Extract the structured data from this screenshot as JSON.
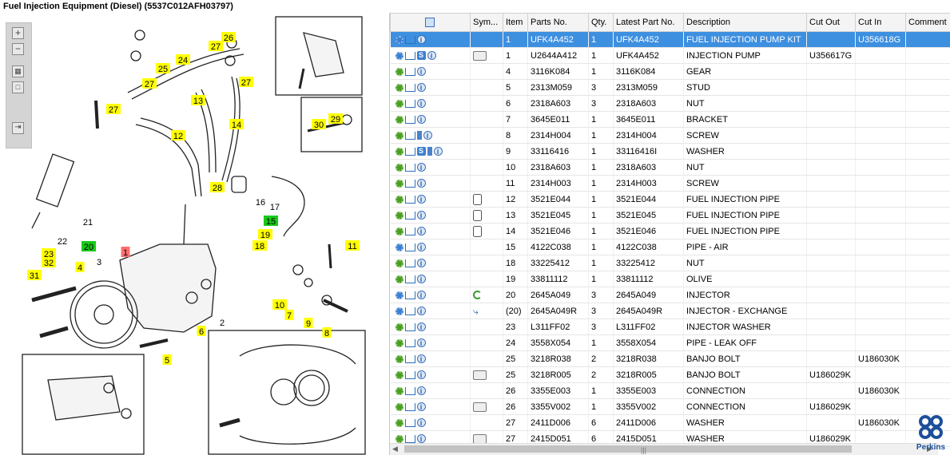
{
  "title": "Fuel Injection Equipment (Diesel) (5537C012AFH03797)",
  "toolbar": {
    "zoom_in": "+",
    "zoom_out": "−"
  },
  "callouts": [
    {
      "label": "26",
      "color": "yellow"
    },
    {
      "label": "27",
      "color": "yellow"
    },
    {
      "label": "25",
      "color": "yellow"
    },
    {
      "label": "24",
      "color": "yellow"
    },
    {
      "label": "27",
      "color": "yellow"
    },
    {
      "label": "27",
      "color": "yellow"
    },
    {
      "label": "13",
      "color": "yellow"
    },
    {
      "label": "27",
      "color": "yellow"
    },
    {
      "label": "14",
      "color": "yellow"
    },
    {
      "label": "12",
      "color": "yellow"
    },
    {
      "label": "30",
      "color": "yellow"
    },
    {
      "label": "29",
      "color": "yellow"
    },
    {
      "label": "28",
      "color": "yellow"
    },
    {
      "label": "16",
      "color": "plain"
    },
    {
      "label": "17",
      "color": "plain"
    },
    {
      "label": "15",
      "color": "green"
    },
    {
      "label": "21",
      "color": "plain"
    },
    {
      "label": "22",
      "color": "plain"
    },
    {
      "label": "19",
      "color": "yellow"
    },
    {
      "label": "18",
      "color": "yellow"
    },
    {
      "label": "11",
      "color": "yellow"
    },
    {
      "label": "20",
      "color": "green"
    },
    {
      "label": "23",
      "color": "yellow"
    },
    {
      "label": "32",
      "color": "yellow"
    },
    {
      "label": "1",
      "color": "red"
    },
    {
      "label": "3",
      "color": "plain"
    },
    {
      "label": "4",
      "color": "yellow"
    },
    {
      "label": "31",
      "color": "yellow"
    },
    {
      "label": "10",
      "color": "yellow"
    },
    {
      "label": "7",
      "color": "yellow"
    },
    {
      "label": "2",
      "color": "plain"
    },
    {
      "label": "6",
      "color": "yellow"
    },
    {
      "label": "9",
      "color": "yellow"
    },
    {
      "label": "8",
      "color": "yellow"
    },
    {
      "label": "5",
      "color": "yellow"
    }
  ],
  "table": {
    "headers": [
      "",
      "Sym...",
      "Item",
      "Parts No.",
      "Qty.",
      "Latest Part No.",
      "Description",
      "Cut Out",
      "Cut In",
      "Comment"
    ],
    "rows": [
      {
        "icons": [
          "config-icon",
          "cart-icon",
          "info-icon"
        ],
        "sym": "",
        "item": "1",
        "part": "UFK4A452",
        "qty": "1",
        "latest": "UFK4A452",
        "desc": "FUEL INJECTION PUMP KIT",
        "cut_out": "",
        "cut_in": "U356618G",
        "comment": "",
        "selected": true
      },
      {
        "icons": [
          "config-icon",
          "cart-icon",
          "s-icon",
          "info-icon"
        ],
        "sym": "binoculars-icon",
        "item": "1",
        "part": "U2644A412",
        "qty": "1",
        "latest": "UFK4A452",
        "desc": "INJECTION PUMP",
        "cut_out": "U356617G",
        "cut_in": "",
        "comment": ""
      },
      {
        "icons": [
          "gear-icon",
          "cart-icon",
          "info-icon"
        ],
        "sym": "",
        "item": "4",
        "part": "3116K084",
        "qty": "1",
        "latest": "3116K084",
        "desc": "GEAR",
        "cut_out": "",
        "cut_in": "",
        "comment": ""
      },
      {
        "icons": [
          "gear-icon",
          "cart-icon",
          "info-icon"
        ],
        "sym": "",
        "item": "5",
        "part": "2313M059",
        "qty": "3",
        "latest": "2313M059",
        "desc": "STUD",
        "cut_out": "",
        "cut_in": "",
        "comment": ""
      },
      {
        "icons": [
          "gear-icon",
          "cart-icon",
          "info-icon"
        ],
        "sym": "",
        "item": "6",
        "part": "2318A603",
        "qty": "3",
        "latest": "2318A603",
        "desc": "NUT",
        "cut_out": "",
        "cut_in": "",
        "comment": ""
      },
      {
        "icons": [
          "gear-icon",
          "cart-icon",
          "info-icon"
        ],
        "sym": "",
        "item": "7",
        "part": "3645E011",
        "qty": "1",
        "latest": "3645E011",
        "desc": "BRACKET",
        "cut_out": "",
        "cut_in": "",
        "comment": ""
      },
      {
        "icons": [
          "gear-icon",
          "cart-icon",
          "book-icon",
          "info-icon"
        ],
        "sym": "",
        "item": "8",
        "part": "2314H004",
        "qty": "1",
        "latest": "2314H004",
        "desc": "SCREW",
        "cut_out": "",
        "cut_in": "",
        "comment": ""
      },
      {
        "icons": [
          "gear-icon",
          "cart-icon",
          "s-icon",
          "book-icon",
          "info-icon"
        ],
        "sym": "",
        "item": "9",
        "part": "33116416",
        "qty": "1",
        "latest": "33116416I",
        "desc": "WASHER",
        "cut_out": "",
        "cut_in": "",
        "comment": ""
      },
      {
        "icons": [
          "gear-icon",
          "cart-icon",
          "info-icon"
        ],
        "sym": "",
        "item": "10",
        "part": "2318A603",
        "qty": "1",
        "latest": "2318A603",
        "desc": "NUT",
        "cut_out": "",
        "cut_in": "",
        "comment": ""
      },
      {
        "icons": [
          "gear-icon",
          "cart-icon",
          "info-icon"
        ],
        "sym": "",
        "item": "11",
        "part": "2314H003",
        "qty": "1",
        "latest": "2314H003",
        "desc": "SCREW",
        "cut_out": "",
        "cut_in": "",
        "comment": ""
      },
      {
        "icons": [
          "gear-icon",
          "cart-icon",
          "info-icon"
        ],
        "sym": "cylinder-icon",
        "item": "12",
        "part": "3521E044",
        "qty": "1",
        "latest": "3521E044",
        "desc": "FUEL INJECTION PIPE",
        "cut_out": "",
        "cut_in": "",
        "comment": ""
      },
      {
        "icons": [
          "gear-icon",
          "cart-icon",
          "info-icon"
        ],
        "sym": "cylinder-icon",
        "item": "13",
        "part": "3521E045",
        "qty": "1",
        "latest": "3521E045",
        "desc": "FUEL INJECTION PIPE",
        "cut_out": "",
        "cut_in": "",
        "comment": ""
      },
      {
        "icons": [
          "gear-icon",
          "cart-icon",
          "info-icon"
        ],
        "sym": "cylinder-icon",
        "item": "14",
        "part": "3521E046",
        "qty": "1",
        "latest": "3521E046",
        "desc": "FUEL INJECTION PIPE",
        "cut_out": "",
        "cut_in": "",
        "comment": ""
      },
      {
        "icons": [
          "config-icon",
          "cart-icon",
          "info-icon"
        ],
        "sym": "",
        "item": "15",
        "part": "4122C038",
        "qty": "1",
        "latest": "4122C038",
        "desc": "PIPE - AIR",
        "cut_out": "",
        "cut_in": "",
        "comment": ""
      },
      {
        "icons": [
          "gear-icon",
          "cart-icon",
          "info-icon"
        ],
        "sym": "",
        "item": "18",
        "part": "33225412",
        "qty": "1",
        "latest": "33225412",
        "desc": "NUT",
        "cut_out": "",
        "cut_in": "",
        "comment": ""
      },
      {
        "icons": [
          "gear-icon",
          "cart-icon",
          "info-icon"
        ],
        "sym": "",
        "item": "19",
        "part": "33811112",
        "qty": "1",
        "latest": "33811112",
        "desc": "OLIVE",
        "cut_out": "",
        "cut_in": "",
        "comment": ""
      },
      {
        "icons": [
          "config-icon",
          "cart-icon",
          "info-icon"
        ],
        "sym": "recycle-icon",
        "item": "20",
        "part": "2645A049",
        "qty": "3",
        "latest": "2645A049",
        "desc": "INJECTOR",
        "cut_out": "",
        "cut_in": "",
        "comment": ""
      },
      {
        "icons": [
          "config-icon",
          "cart-icon",
          "info-icon"
        ],
        "sym": "exchange-icon",
        "item": "(20)",
        "part": "2645A049R",
        "qty": "3",
        "latest": "2645A049R",
        "desc": "INJECTOR - EXCHANGE",
        "cut_out": "",
        "cut_in": "",
        "comment": ""
      },
      {
        "icons": [
          "gear-icon",
          "cart-icon",
          "info-icon"
        ],
        "sym": "",
        "item": "23",
        "part": "L311FF02",
        "qty": "3",
        "latest": "L311FF02",
        "desc": "INJECTOR WASHER",
        "cut_out": "",
        "cut_in": "",
        "comment": ""
      },
      {
        "icons": [
          "gear-icon",
          "cart-icon",
          "info-icon"
        ],
        "sym": "",
        "item": "24",
        "part": "3558X054",
        "qty": "1",
        "latest": "3558X054",
        "desc": "PIPE - LEAK OFF",
        "cut_out": "",
        "cut_in": "",
        "comment": ""
      },
      {
        "icons": [
          "gear-icon",
          "cart-icon",
          "info-icon"
        ],
        "sym": "",
        "item": "25",
        "part": "3218R038",
        "qty": "2",
        "latest": "3218R038",
        "desc": "BANJO BOLT",
        "cut_out": "",
        "cut_in": "U186030K",
        "comment": ""
      },
      {
        "icons": [
          "gear-icon",
          "cart-icon",
          "info-icon"
        ],
        "sym": "binoculars-icon",
        "item": "25",
        "part": "3218R005",
        "qty": "2",
        "latest": "3218R005",
        "desc": "BANJO BOLT",
        "cut_out": "U186029K",
        "cut_in": "",
        "comment": ""
      },
      {
        "icons": [
          "gear-icon",
          "cart-icon",
          "info-icon"
        ],
        "sym": "",
        "item": "26",
        "part": "3355E003",
        "qty": "1",
        "latest": "3355E003",
        "desc": "CONNECTION",
        "cut_out": "",
        "cut_in": "U186030K",
        "comment": ""
      },
      {
        "icons": [
          "gear-icon",
          "cart-icon",
          "info-icon"
        ],
        "sym": "binoculars-icon",
        "item": "26",
        "part": "3355V002",
        "qty": "1",
        "latest": "3355V002",
        "desc": "CONNECTION",
        "cut_out": "U186029K",
        "cut_in": "",
        "comment": ""
      },
      {
        "icons": [
          "gear-icon",
          "cart-icon",
          "info-icon"
        ],
        "sym": "",
        "item": "27",
        "part": "2411D006",
        "qty": "6",
        "latest": "2411D006",
        "desc": "WASHER",
        "cut_out": "",
        "cut_in": "U186030K",
        "comment": ""
      },
      {
        "icons": [
          "gear-icon",
          "cart-icon",
          "info-icon"
        ],
        "sym": "binoculars-icon",
        "item": "27",
        "part": "2415D051",
        "qty": "6",
        "latest": "2415D051",
        "desc": "WASHER",
        "cut_out": "U186029K",
        "cut_in": "",
        "comment": ""
      }
    ]
  },
  "logo": {
    "text": "Perkins",
    "color": "#1d4f9a"
  },
  "colors": {
    "selected": "#3d8fe0",
    "callout_yellow": "#ffff00",
    "callout_green": "#19c919",
    "callout_red": "#ff6f6f"
  }
}
